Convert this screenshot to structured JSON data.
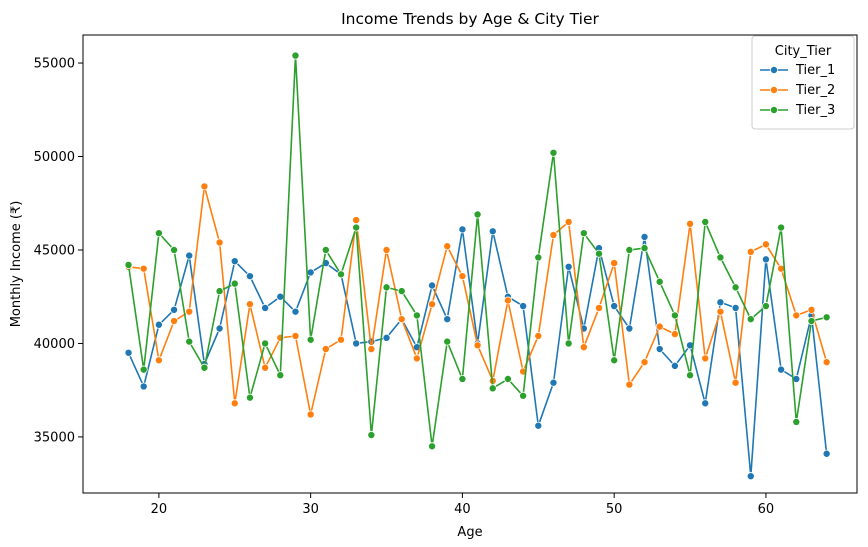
{
  "chart_data": {
    "type": "line",
    "title": "Income Trends by Age & City Tier",
    "xlabel": "Age",
    "ylabel": "Monthly Income (₹)",
    "xlim": [
      15,
      66
    ],
    "ylim": [
      32000,
      56500
    ],
    "xticks": [
      20,
      30,
      40,
      50,
      60
    ],
    "yticks": [
      35000,
      40000,
      45000,
      50000,
      55000
    ],
    "grid": false,
    "legend": {
      "title": "City_Tier",
      "placement": "top-right"
    },
    "x": [
      18,
      19,
      20,
      21,
      22,
      23,
      24,
      25,
      26,
      27,
      28,
      29,
      30,
      31,
      32,
      33,
      34,
      35,
      36,
      37,
      38,
      39,
      40,
      41,
      42,
      43,
      44,
      45,
      46,
      47,
      48,
      49,
      50,
      51,
      52,
      53,
      54,
      55,
      56,
      57,
      58,
      59,
      60,
      61,
      62,
      63,
      64
    ],
    "series": [
      {
        "name": "Tier_1",
        "color": "#1f77b4",
        "values": [
          39500,
          37700,
          41000,
          41800,
          44700,
          38900,
          40800,
          44400,
          43600,
          41900,
          42500,
          41700,
          43800,
          44300,
          43700,
          40000,
          40100,
          40300,
          41300,
          39800,
          43100,
          41300,
          46100,
          40000,
          46000,
          42500,
          42000,
          35600,
          37900,
          44100,
          40800,
          45100,
          42000,
          40800,
          45700,
          39700,
          38800,
          39900,
          36800,
          42200,
          41900,
          32900,
          44500,
          38600,
          38100,
          41500,
          34100
        ]
      },
      {
        "name": "Tier_2",
        "color": "#ff7f0e",
        "values": [
          44100,
          44000,
          39100,
          41200,
          41700,
          48400,
          45400,
          36800,
          42100,
          38700,
          40300,
          40400,
          36200,
          39700,
          40200,
          46600,
          39700,
          45000,
          41300,
          39200,
          42100,
          45200,
          43600,
          39900,
          38000,
          42300,
          38500,
          40400,
          45800,
          46500,
          39800,
          41900,
          44300,
          37800,
          39000,
          40900,
          40500,
          46400,
          39200,
          41700,
          37900,
          44900,
          45300,
          44000,
          41500,
          41800,
          39000
        ]
      },
      {
        "name": "Tier_3",
        "color": "#2ca02c",
        "values": [
          44200,
          38600,
          45900,
          45000,
          40100,
          38700,
          42800,
          43200,
          37100,
          40000,
          38300,
          55400,
          40200,
          45000,
          43700,
          46200,
          35100,
          43000,
          42800,
          41500,
          34500,
          40100,
          38100,
          46900,
          37600,
          38100,
          37200,
          44600,
          50200,
          40000,
          45900,
          44800,
          39100,
          45000,
          45100,
          43300,
          41500,
          38300,
          46500,
          44600,
          43000,
          41300,
          42000,
          46200,
          35800,
          41200,
          41400
        ]
      }
    ]
  }
}
